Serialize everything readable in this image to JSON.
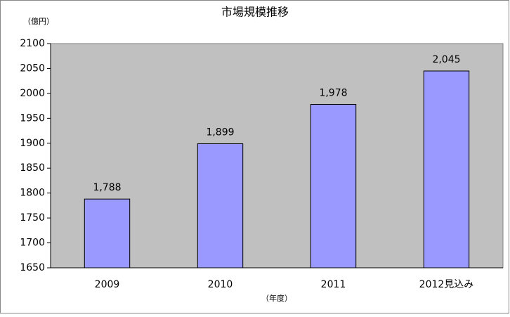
{
  "chart_data": {
    "type": "bar",
    "title": "市場規模推移",
    "y_label": "（億円）",
    "x_label": "（年度）",
    "categories": [
      "2009",
      "2010",
      "2011",
      "2012見込み"
    ],
    "values": [
      1788,
      1899,
      1978,
      2045
    ],
    "value_labels": [
      "1,788",
      "1,899",
      "1,978",
      "2,045"
    ],
    "color": "#9999ff",
    "ylim": [
      1650,
      2100
    ],
    "yticks": [
      1650,
      1700,
      1750,
      1800,
      1850,
      1900,
      1950,
      2000,
      2050,
      2100
    ],
    "grid": false
  }
}
